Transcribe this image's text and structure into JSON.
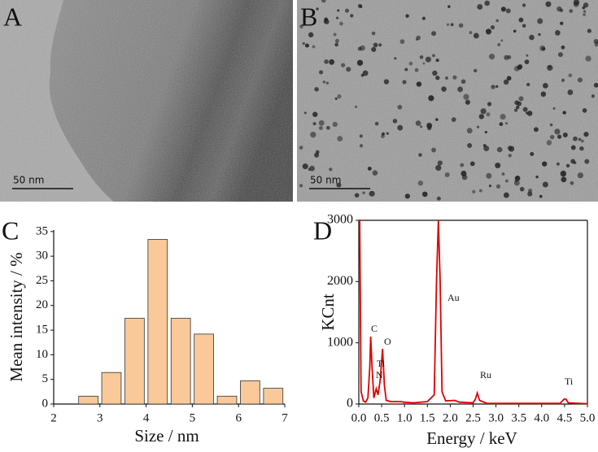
{
  "images": [
    {
      "label": "A",
      "scale_bar": "50 nm"
    },
    {
      "label": "B",
      "scale_bar": "50 nm"
    }
  ],
  "chart_data": [
    {
      "type": "bar",
      "panel_label": "C",
      "x_label": "Size / nm",
      "y_label": "Mean intensity / %",
      "x": [
        2.75,
        3.25,
        3.75,
        4.25,
        4.75,
        5.25,
        5.75,
        6.25,
        6.75
      ],
      "values": [
        1.6,
        6.4,
        17.4,
        33.4,
        17.4,
        14.2,
        1.6,
        4.7,
        3.2
      ],
      "color": "#f9c99a",
      "xlim": [
        2,
        7
      ],
      "xticks": [
        2,
        3,
        4,
        5,
        6,
        7
      ],
      "ylim": [
        0,
        35.3
      ],
      "yticks": [
        0,
        5,
        10,
        15,
        20,
        25,
        30,
        35
      ]
    },
    {
      "type": "line",
      "panel_label": "D",
      "x_label": "Energy / keV",
      "y_label": "KCnt",
      "x": [
        0.0,
        0.02,
        0.05,
        0.1,
        0.15,
        0.2,
        0.24,
        0.26,
        0.29,
        0.33,
        0.38,
        0.42,
        0.47,
        0.52,
        0.56,
        0.6,
        0.7,
        0.93,
        0.98,
        1.2,
        1.5,
        1.65,
        1.7,
        1.74,
        1.78,
        1.82,
        1.9,
        2.1,
        2.2,
        2.5,
        2.55,
        2.59,
        2.64,
        2.8,
        3.5,
        4.4,
        4.49,
        4.53,
        4.58,
        5.0
      ],
      "values": [
        3000,
        3000,
        200,
        50,
        30,
        100,
        600,
        1100,
        600,
        100,
        250,
        150,
        400,
        900,
        300,
        60,
        40,
        40,
        30,
        20,
        40,
        150,
        2000,
        3000,
        2000,
        200,
        50,
        60,
        30,
        20,
        80,
        180,
        60,
        10,
        10,
        10,
        80,
        80,
        20,
        5
      ],
      "color": "#e00000",
      "annotations": [
        "C",
        "Ti",
        "N",
        "O",
        "Au",
        "Ru",
        "Ti"
      ],
      "xlim": [
        0,
        5
      ],
      "xticks": [
        {
          "value": 0,
          "label": "0.0"
        },
        0.5,
        {
          "value": 1,
          "label": "1.0"
        },
        1.5,
        {
          "value": 2,
          "label": "2.0"
        },
        2.5,
        {
          "value": 3,
          "label": "3.0"
        },
        3.5,
        {
          "value": 4,
          "label": "4.0"
        },
        4.5,
        {
          "value": 5,
          "label": "5.0"
        }
      ],
      "ylim": [
        0,
        3000
      ],
      "yticks": [
        0,
        1000,
        2000,
        3000
      ]
    }
  ]
}
